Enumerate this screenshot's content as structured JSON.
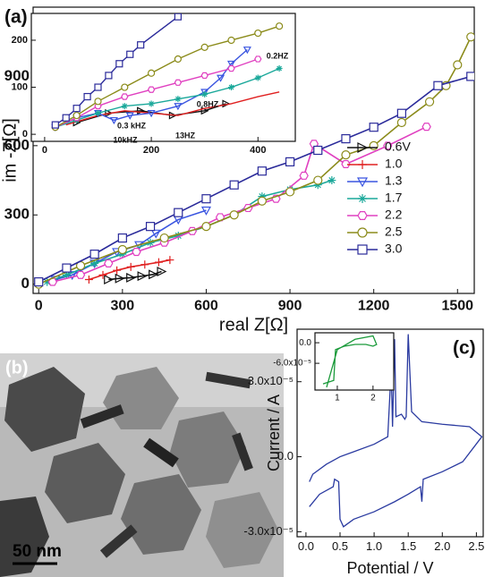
{
  "chart_data": [
    {
      "type": "line",
      "panel_label": "(a)",
      "x_label": "real Z[Ω]",
      "y_label": "im -Z[Ω]",
      "xlim": [
        -20,
        1560
      ],
      "ylim": [
        -40,
        1200
      ],
      "xticks": [
        0,
        300,
        600,
        900,
        1200,
        1500
      ],
      "yticks": [
        0,
        300,
        600,
        900
      ],
      "legend": "right",
      "series": [
        {
          "name": "0.6V",
          "color": "#111111",
          "marker": "tri-right",
          "x": [
            250,
            290,
            330,
            370,
            410,
            440
          ],
          "values": [
            20,
            25,
            28,
            35,
            42,
            55
          ]
        },
        {
          "name": "1.0",
          "color": "#e02020",
          "marker": "plus",
          "x": [
            180,
            230,
            280,
            330,
            380,
            430,
            470
          ],
          "values": [
            20,
            40,
            60,
            75,
            85,
            95,
            105
          ]
        },
        {
          "name": "1.3",
          "color": "#3a55e0",
          "marker": "tri-down",
          "x": [
            60,
            120,
            200,
            280,
            360,
            420,
            500,
            600
          ],
          "values": [
            20,
            40,
            90,
            140,
            170,
            220,
            280,
            320
          ]
        },
        {
          "name": "1.7",
          "color": "#1aa89a",
          "marker": "star",
          "x": [
            30,
            100,
            200,
            300,
            400,
            500,
            600,
            700,
            800,
            900,
            1000,
            1050
          ],
          "values": [
            10,
            40,
            90,
            130,
            180,
            210,
            250,
            300,
            380,
            410,
            430,
            450
          ]
        },
        {
          "name": "2.2",
          "color": "#e040c0",
          "marker": "hexagon",
          "x": [
            50,
            150,
            250,
            350,
            450,
            550,
            650,
            750,
            850,
            950,
            986,
            1100,
            1250,
            1389
          ],
          "values": [
            10,
            40,
            90,
            140,
            180,
            230,
            290,
            330,
            370,
            470,
            608,
            520,
            600,
            682
          ]
        },
        {
          "name": "2.5",
          "color": "#8b8b1a",
          "marker": "circle",
          "x": [
            0,
            150,
            300,
            450,
            600,
            700,
            800,
            900,
            1000,
            1100,
            1200,
            1300,
            1400,
            1459,
            1500,
            1548
          ],
          "values": [
            0,
            80,
            150,
            200,
            250,
            300,
            360,
            400,
            450,
            560,
            600,
            700,
            790,
            860,
            950,
            1071
          ]
        },
        {
          "name": "3.0",
          "color": "#2a2a9a",
          "marker": "square",
          "x": [
            0,
            100,
            200,
            300,
            400,
            500,
            600,
            700,
            800,
            900,
            1000,
            1100,
            1200,
            1300,
            1430,
            1548
          ],
          "values": [
            10,
            70,
            130,
            200,
            250,
            310,
            370,
            430,
            490,
            530,
            580,
            630,
            680,
            740,
            860,
            900
          ]
        }
      ]
    },
    {
      "type": "line",
      "xlim": [
        -25,
        470
      ],
      "ylim": [
        -15,
        257
      ],
      "xticks": [
        0,
        200,
        400
      ],
      "yticks": [
        0,
        100,
        200
      ],
      "annotations": [
        "0.2HZ",
        "0.8HZ",
        "0.3 kHZ",
        "10kHZ",
        "13HZ"
      ],
      "series": [
        {
          "color": "#111111",
          "marker": "tri-right",
          "x": [
            60,
            120,
            180,
            240,
            300,
            340
          ],
          "values": [
            25,
            45,
            50,
            40,
            50,
            65
          ]
        },
        {
          "color": "#e02020",
          "marker": "none",
          "x": [
            40,
            100,
            150,
            200,
            250,
            300,
            350,
            400,
            440
          ],
          "values": [
            20,
            40,
            50,
            45,
            40,
            55,
            65,
            80,
            90
          ]
        },
        {
          "color": "#3a55e0",
          "marker": "tri-down",
          "x": [
            20,
            60,
            100,
            130,
            160,
            200,
            250,
            300,
            330,
            350,
            380
          ],
          "values": [
            15,
            35,
            45,
            30,
            40,
            45,
            60,
            90,
            120,
            150,
            180
          ]
        },
        {
          "color": "#1aa89a",
          "marker": "star",
          "x": [
            20,
            60,
            100,
            150,
            200,
            250,
            300,
            350,
            400,
            440
          ],
          "values": [
            15,
            30,
            45,
            60,
            65,
            75,
            85,
            100,
            120,
            140
          ]
        },
        {
          "color": "#e040c0",
          "marker": "hexagon",
          "x": [
            20,
            60,
            100,
            150,
            200,
            250,
            300,
            350,
            400
          ],
          "values": [
            15,
            35,
            60,
            80,
            95,
            110,
            125,
            140,
            160
          ]
        },
        {
          "color": "#8b8b1a",
          "marker": "circle",
          "x": [
            20,
            60,
            100,
            150,
            200,
            250,
            300,
            350,
            400,
            440
          ],
          "values": [
            15,
            40,
            70,
            100,
            130,
            160,
            185,
            200,
            215,
            230
          ]
        },
        {
          "color": "#2a2a9a",
          "marker": "square",
          "x": [
            20,
            40,
            60,
            80,
            100,
            120,
            140,
            160,
            180,
            250
          ],
          "values": [
            20,
            35,
            55,
            80,
            100,
            125,
            150,
            170,
            190,
            250
          ]
        }
      ]
    },
    {
      "type": "line",
      "panel_label": "(c)",
      "x_label": "Potential / V",
      "y_label": "Current / A",
      "xlim": [
        -0.13,
        2.6
      ],
      "ylim": [
        -3.2e-05,
        5.1e-05
      ],
      "xticks": [
        {
          "value": 0,
          "label": "0.0"
        },
        {
          "value": 0.5,
          "label": "0.5"
        },
        {
          "value": 1,
          "label": "1.0"
        },
        {
          "value": 1.5,
          "label": "1.5"
        },
        {
          "value": 2,
          "label": "2.0"
        },
        {
          "value": 2.5,
          "label": "2.5"
        }
      ],
      "yticks": [
        {
          "value": 3e-05,
          "label": "3.0x10⁻⁵"
        },
        {
          "value": 0,
          "label": "0.0"
        },
        {
          "value": -3e-05,
          "label": "-3.0x10⁻⁵"
        }
      ],
      "series": [
        {
          "color": "#2a3aa0",
          "marker": "none",
          "x": [
            0.05,
            0.2,
            0.4,
            0.42,
            0.48,
            0.5,
            0.55,
            0.7,
            1.0,
            1.3,
            1.5,
            1.68,
            1.7,
            1.72,
            2.0,
            2.3,
            2.58,
            2.4,
            2.0,
            1.7,
            1.55,
            1.5,
            1.47,
            1.45,
            1.4,
            1.32,
            1.3,
            1.27,
            1.25,
            1.2,
            1.0,
            0.7,
            0.5,
            0.3,
            0.1,
            0.05
          ],
          "values": [
            -2e-05,
            -1.5e-05,
            -1.2e-05,
            -9e-06,
            -1e-05,
            -2.5e-05,
            -2.8e-05,
            -2.5e-05,
            -2.2e-05,
            -1.8e-05,
            -1.5e-05,
            -1.2e-05,
            -1.8e-05,
            -9e-06,
            -6e-06,
            -2e-06,
            8e-06,
            1.2e-05,
            1.3e-05,
            1.4e-05,
            1.8e-05,
            4.9e-05,
            1.6e-05,
            1.5e-05,
            1.7e-05,
            1.6e-05,
            4.7e-05,
            1.2e-05,
            3.5e-05,
            8e-06,
            5e-06,
            2e-06,
            0,
            -3e-06,
            -7e-06,
            -1e-05
          ]
        }
      ]
    },
    {
      "type": "line",
      "xlim": [
        0.375,
        2.58
      ],
      "ylim": [
        -0.000138,
        2.9e-05
      ],
      "xticks": [
        1,
        2
      ],
      "yticks": [
        {
          "value": 0,
          "label": "0.0"
        },
        {
          "value": -6e-05,
          "label": "-6.0x10⁻⁵"
        }
      ],
      "series": [
        {
          "color": "#1a9a3a",
          "marker": "none",
          "x": [
            0.6,
            0.9,
            0.95,
            1.2,
            1.5,
            1.8,
            2.0,
            2.1,
            2.0,
            1.5,
            1.0,
            0.7
          ],
          "values": [
            -0.00012,
            -0.00011,
            -2e-05,
            -1e-05,
            -5e-06,
            -5e-06,
            -1e-05,
            -5e-06,
            2e-05,
            1e-05,
            -2e-05,
            -0.00013
          ]
        }
      ]
    }
  ],
  "image_panel": {
    "panel_label": "(b)",
    "scale_bar": "50 nm"
  }
}
